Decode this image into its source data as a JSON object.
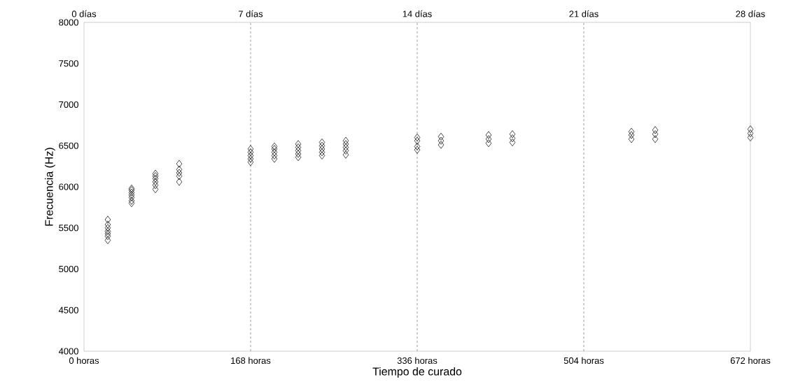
{
  "chart_data": {
    "type": "scatter",
    "xlabel": "Tiempo de curado",
    "ylabel": "Frecuencia (Hz)",
    "series": [
      {
        "color": "#000000",
        "marker": "diamond",
        "x": [
          24,
          24,
          24,
          24,
          24,
          24,
          24,
          48,
          48,
          48,
          48,
          48,
          48,
          48,
          72,
          72,
          72,
          72,
          72,
          72,
          96,
          96,
          96,
          96,
          96,
          168,
          168,
          168,
          168,
          168,
          192,
          192,
          192,
          192,
          192,
          216,
          216,
          216,
          216,
          216,
          240,
          240,
          240,
          240,
          240,
          264,
          264,
          264,
          264,
          264,
          336,
          336,
          336,
          336,
          360,
          360,
          360,
          408,
          408,
          408,
          432,
          432,
          432,
          552,
          552,
          552,
          576,
          576,
          576,
          672,
          672,
          672
        ],
        "values": [
          5350,
          5400,
          5430,
          5460,
          5500,
          5540,
          5600,
          5800,
          5830,
          5870,
          5900,
          5930,
          5960,
          5980,
          5970,
          6020,
          6060,
          6100,
          6130,
          6160,
          6060,
          6130,
          6170,
          6210,
          6280,
          6300,
          6340,
          6380,
          6420,
          6460,
          6340,
          6380,
          6420,
          6460,
          6490,
          6360,
          6400,
          6440,
          6480,
          6520,
          6380,
          6420,
          6460,
          6500,
          6540,
          6390,
          6440,
          6480,
          6520,
          6560,
          6450,
          6490,
          6560,
          6600,
          6510,
          6560,
          6610,
          6530,
          6580,
          6630,
          6540,
          6590,
          6640,
          6580,
          6630,
          6670,
          6580,
          6640,
          6690,
          6600,
          6650,
          6700
        ]
      }
    ],
    "xlim": [
      0,
      672
    ],
    "xticks": [
      {
        "value": 0,
        "label": "0 horas"
      },
      {
        "value": 168,
        "label": "168 horas"
      },
      {
        "value": 336,
        "label": "336 horas"
      },
      {
        "value": 504,
        "label": "504 horas"
      },
      {
        "value": 672,
        "label": "672 horas"
      }
    ],
    "x2lim": [
      0,
      28
    ],
    "x2ticks": [
      {
        "value": 0,
        "label": "0 días"
      },
      {
        "value": 7,
        "label": "7 días"
      },
      {
        "value": 14,
        "label": "14 días"
      },
      {
        "value": 21,
        "label": "21 días"
      },
      {
        "value": 28,
        "label": "28 días"
      }
    ],
    "ylim": [
      4000,
      8000
    ],
    "yticks": [
      4000,
      4500,
      5000,
      5500,
      6000,
      6500,
      7000,
      7500,
      8000
    ],
    "ref_lines": [
      {
        "axis": "x",
        "value": 168,
        "color": "#808080",
        "line_style": "dashed"
      },
      {
        "axis": "x",
        "value": 336,
        "color": "#808080",
        "line_style": "dashed"
      },
      {
        "axis": "x",
        "value": 504,
        "color": "#808080",
        "line_style": "dashed"
      }
    ],
    "grid": false
  }
}
